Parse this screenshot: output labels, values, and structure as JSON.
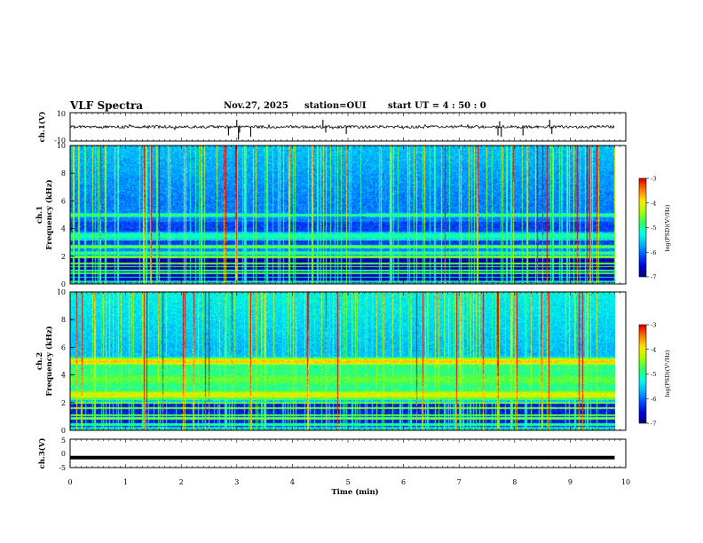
{
  "header": {
    "title": "VLF Spectra",
    "date": "Nov.27, 2025",
    "station": "station=OUI",
    "start": "start  UT =  4 : 50 : 0"
  },
  "colors": {
    "colormap": [
      "#000080",
      "#0000d8",
      "#0050ff",
      "#00b4ff",
      "#00ffe6",
      "#30ff60",
      "#a8ff00",
      "#ffe600",
      "#ff7800",
      "#e00000",
      "#ffffff"
    ],
    "trace": "#000000"
  },
  "chart_data": [
    {
      "id": "ch1-waveform",
      "type": "line",
      "ylabel": "ch.1(V)",
      "ylim": [
        -10,
        10
      ],
      "yticks": [
        "10",
        "-10"
      ],
      "xlim": [
        0,
        10
      ],
      "baseline": 0,
      "spikes": [
        {
          "t": 2.85,
          "v": -6
        },
        {
          "t": 3.0,
          "v": 5
        },
        {
          "t": 3.03,
          "v": -9
        },
        {
          "t": 3.05,
          "v": -4
        },
        {
          "t": 3.25,
          "v": -7
        },
        {
          "t": 4.55,
          "v": 5
        },
        {
          "t": 4.6,
          "v": -4
        },
        {
          "t": 4.97,
          "v": -5
        },
        {
          "t": 7.7,
          "v": -6
        },
        {
          "t": 7.73,
          "v": 4
        },
        {
          "t": 7.76,
          "v": -7
        },
        {
          "t": 8.15,
          "v": -6
        },
        {
          "t": 8.63,
          "v": 5
        },
        {
          "t": 8.67,
          "v": -5
        }
      ]
    },
    {
      "id": "ch1-spectrogram",
      "type": "heatmap",
      "ylabel_top": "ch.1",
      "ylabel": "Frequency (kHz)",
      "ylim": [
        0,
        10
      ],
      "yticks": [
        "0",
        "2",
        "4",
        "6",
        "8",
        "10"
      ],
      "xlim": [
        0,
        9.8
      ],
      "bands": [
        {
          "f": 5.0,
          "level": -4.8,
          "width": 0.15
        },
        {
          "f": 3.5,
          "level": -5.0,
          "width": 0.3
        },
        {
          "f": 2.3,
          "level": -5.0,
          "width": 0.1
        }
      ],
      "colorbar": {
        "label": "log(PSD)(V²/Hz)",
        "range": [
          -7,
          -3
        ],
        "ticks": [
          "-3",
          "-4",
          "-5",
          "-6",
          "-7"
        ]
      }
    },
    {
      "id": "ch2-spectrogram",
      "type": "heatmap",
      "ylabel_top": "ch.2",
      "ylabel": "Frequency (kHz)",
      "ylim": [
        0,
        10
      ],
      "yticks": [
        "0",
        "2",
        "4",
        "6",
        "8",
        "10"
      ],
      "xlim": [
        0,
        9.8
      ],
      "bands": [
        {
          "f": 5.0,
          "level": -3.8,
          "width": 0.25
        },
        {
          "f": 2.6,
          "level": -4.0,
          "width": 0.3
        },
        {
          "f": 3.7,
          "level": -4.6,
          "width": 0.6
        }
      ],
      "colorbar": {
        "label": "log(PSD)(V²/Hz)",
        "range": [
          -7,
          -3
        ],
        "ticks": [
          "-3",
          "-4",
          "-5",
          "-6",
          "-7"
        ]
      }
    },
    {
      "id": "ch3-waveform",
      "type": "line",
      "ylabel": "ch.3(V)",
      "ylim": [
        -5,
        5
      ],
      "yticks": [
        "5",
        "0",
        "-5"
      ],
      "xlim": [
        0,
        10
      ],
      "baseline": -1.5,
      "spikes": []
    }
  ],
  "xaxis": {
    "label": "Time (min)",
    "ticks": [
      "0",
      "1",
      "2",
      "3",
      "4",
      "5",
      "6",
      "7",
      "8",
      "9",
      "10"
    ],
    "range": [
      0,
      10
    ]
  }
}
